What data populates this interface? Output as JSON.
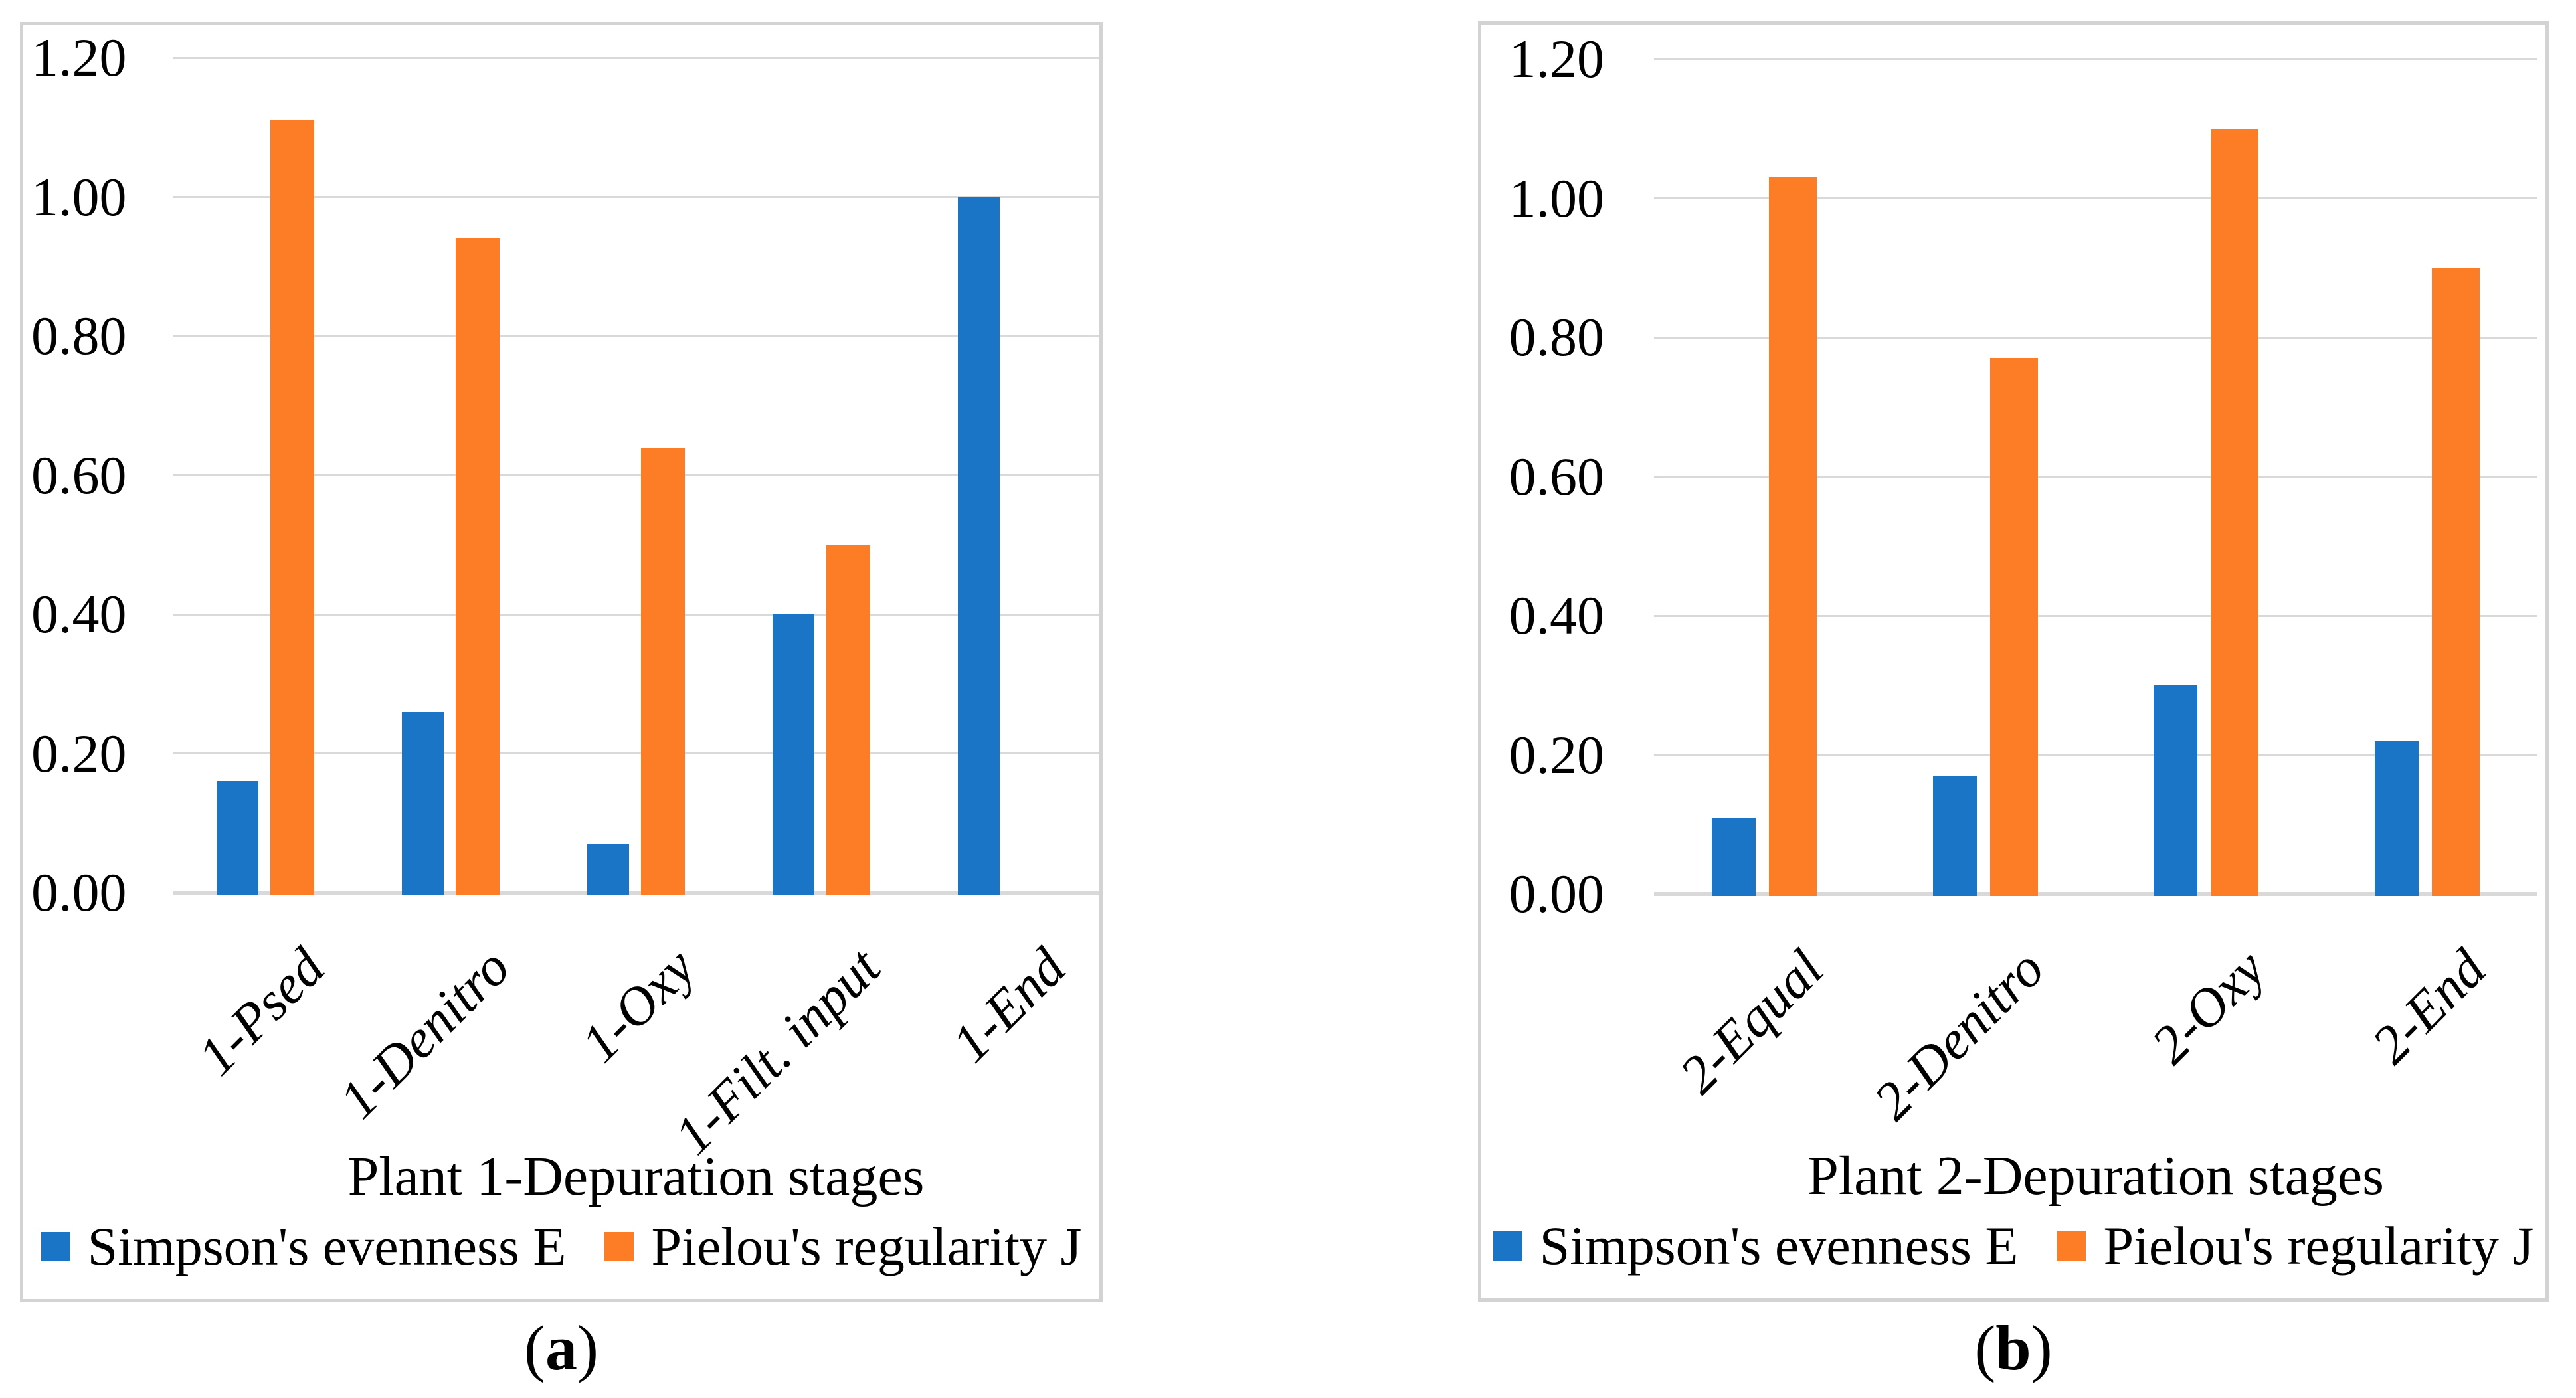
{
  "figure": {
    "background": "#FFFFFF",
    "panels": [
      {
        "caption_open": "(",
        "caption_letter": "a",
        "caption_close": ")"
      },
      {
        "caption_open": "(",
        "caption_letter": "b",
        "caption_close": ")"
      }
    ]
  },
  "style": {
    "bar_blue": "#1A75C6",
    "bar_orange": "#FD7D26",
    "gridline_color": "#D9D9D9",
    "axis_line_color": "#D9D9D9",
    "panel_border_color": "#D3D3D3",
    "text_color": "#000000"
  },
  "chart_data": [
    {
      "type": "bar",
      "title": "",
      "xlabel": "Plant 1-Depuration stages",
      "ylabel": "",
      "ylim": [
        0,
        1.2
      ],
      "ytick_step": 0.2,
      "ytick_labels": [
        "0.00",
        "0.20",
        "0.40",
        "0.60",
        "0.80",
        "1.00",
        "1.20"
      ],
      "grid": true,
      "legend_position": "bottom",
      "categories": [
        "1-Psed",
        "1-Denitro",
        "1-Oxy",
        "1-Filt. input",
        "1-End"
      ],
      "series": [
        {
          "name": "Simpson's evenness E",
          "color": "#1A75C6",
          "values": [
            0.16,
            0.26,
            0.07,
            0.4,
            1.0
          ]
        },
        {
          "name": "Pielou's regularity J",
          "color": "#FD7D26",
          "values": [
            1.11,
            0.94,
            0.64,
            0.5,
            0
          ]
        }
      ]
    },
    {
      "type": "bar",
      "title": "",
      "xlabel": "Plant 2-Depuration stages",
      "ylabel": "",
      "ylim": [
        0,
        1.2
      ],
      "ytick_step": 0.2,
      "ytick_labels": [
        "0.00",
        "0.20",
        "0.40",
        "0.60",
        "0.80",
        "1.00",
        "1.20"
      ],
      "grid": true,
      "legend_position": "bottom",
      "categories": [
        "2-Equal",
        "2-Denitro",
        "2-Oxy",
        "2-End"
      ],
      "series": [
        {
          "name": "Simpson's evenness E",
          "color": "#1A75C6",
          "values": [
            0.11,
            0.17,
            0.3,
            0.22
          ]
        },
        {
          "name": "Pielou's regularity J",
          "color": "#FD7D26",
          "values": [
            1.03,
            0.77,
            1.1,
            0.9
          ]
        }
      ]
    }
  ]
}
